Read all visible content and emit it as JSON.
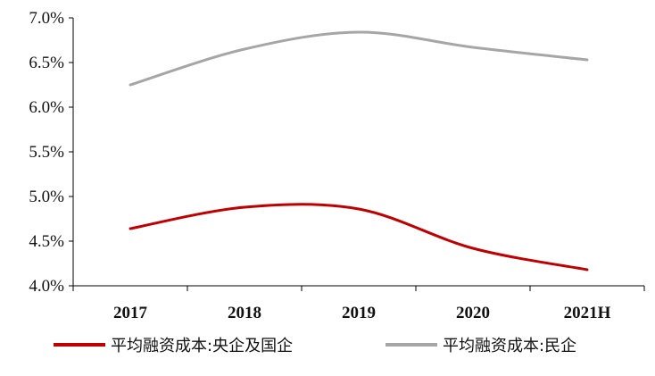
{
  "chart_data": {
    "type": "line",
    "categories": [
      "2017",
      "2018",
      "2019",
      "2020",
      "2021H"
    ],
    "series": [
      {
        "name": "平均融资成本:央企及国企",
        "values": [
          4.64,
          4.88,
          4.86,
          4.42,
          4.18
        ],
        "color": "#c00000"
      },
      {
        "name": "平均融资成本:民企",
        "values": [
          6.25,
          6.65,
          6.84,
          6.67,
          6.53
        ],
        "color": "#a6a6a6"
      }
    ],
    "ylim": [
      4.0,
      7.0
    ],
    "yticks": [
      "4.0%",
      "4.5%",
      "5.0%",
      "5.5%",
      "6.0%",
      "6.5%",
      "7.0%"
    ],
    "grid": false,
    "legend_position": "bottom",
    "smooth": true
  }
}
